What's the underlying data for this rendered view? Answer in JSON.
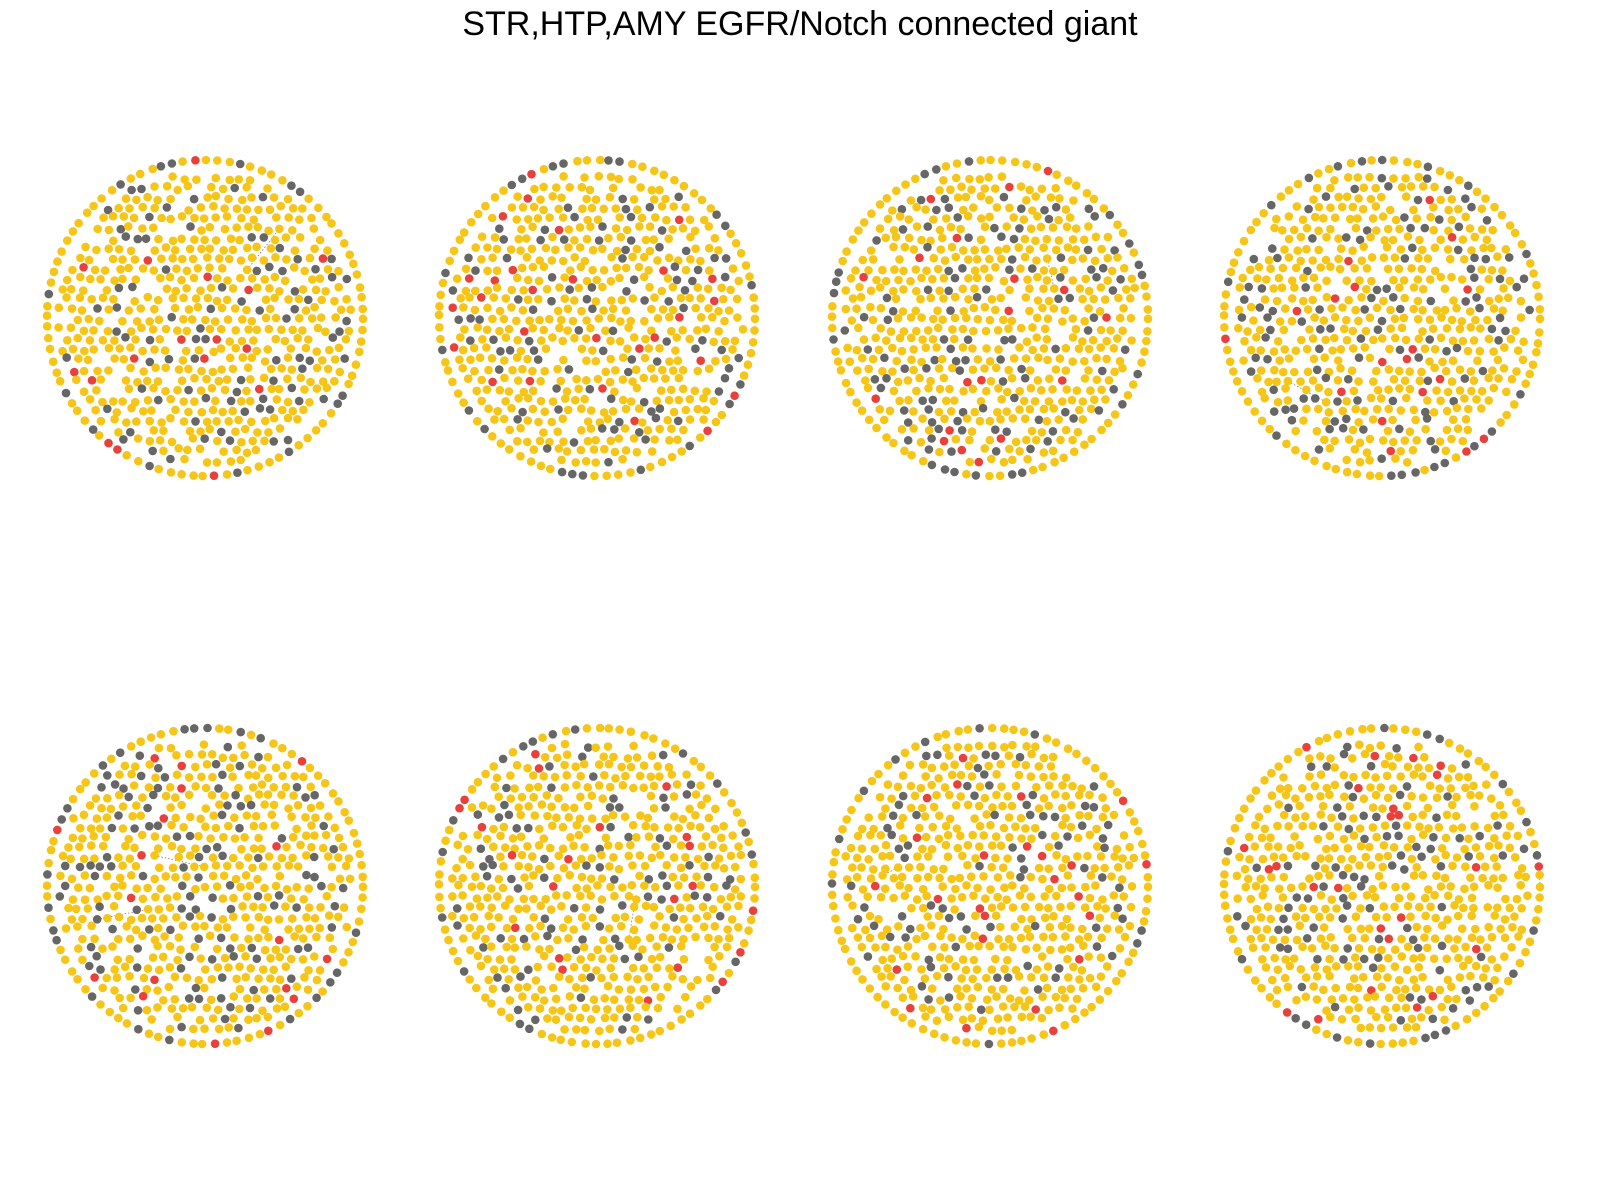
{
  "title": "STR,HTP,AMY EGFR/Notch connected giant",
  "colors": {
    "background": "#ffffff",
    "node_yellow": "#F5C518",
    "node_gray": "#666666",
    "node_red": "#E8413C",
    "edge": "#555555"
  },
  "layout_description": "2 rows x 4 columns of circular node-cloud network panels",
  "panels": [
    {
      "gray_fraction": 0.16,
      "red_fraction": 0.03,
      "seed": 11
    },
    {
      "gray_fraction": 0.18,
      "red_fraction": 0.035,
      "seed": 23
    },
    {
      "gray_fraction": 0.17,
      "red_fraction": 0.035,
      "seed": 37
    },
    {
      "gray_fraction": 0.22,
      "red_fraction": 0.035,
      "seed": 41
    },
    {
      "gray_fraction": 0.18,
      "red_fraction": 0.03,
      "seed": 53
    },
    {
      "gray_fraction": 0.16,
      "red_fraction": 0.035,
      "seed": 67
    },
    {
      "gray_fraction": 0.14,
      "red_fraction": 0.03,
      "seed": 79
    },
    {
      "gray_fraction": 0.16,
      "red_fraction": 0.035,
      "seed": 97
    }
  ]
}
